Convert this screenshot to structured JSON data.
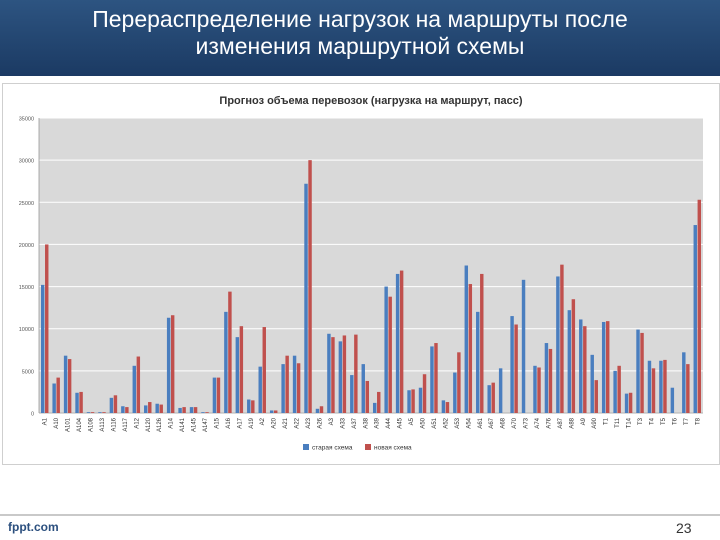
{
  "slide": {
    "title_line1": "Перераспределение нагрузок на маршруты после",
    "title_line2": "изменения маршрутной схемы",
    "footer_logo": "fppt.com",
    "page_number": "23"
  },
  "colors": {
    "header": "#24486f",
    "old_series": "#4a7ebf",
    "new_series": "#c0504d",
    "plot_bg": "#d9d9d9"
  },
  "chart_data": {
    "type": "bar",
    "title": "Прогноз объема перевозок (нагрузка на маршрут, пасс)",
    "xlabel": "",
    "ylabel": "",
    "ylim": [
      0,
      35000
    ],
    "yticks": [
      0,
      5000,
      10000,
      15000,
      20000,
      25000,
      30000,
      35000
    ],
    "grid": true,
    "legend_position": "bottom",
    "categories": [
      "A1",
      "A10",
      "A101",
      "A104",
      "A108",
      "A113",
      "A116",
      "A117",
      "A12",
      "A120",
      "A126",
      "A14",
      "A141",
      "A145",
      "A147",
      "A15",
      "A16",
      "A17",
      "A19",
      "A2",
      "A20",
      "A21",
      "A22",
      "A23",
      "A26",
      "A3",
      "A33",
      "A37",
      "A38",
      "A39",
      "A44",
      "A45",
      "A5",
      "A50",
      "A51",
      "A52",
      "A53",
      "A54",
      "A61",
      "A67",
      "A68",
      "A70",
      "A73",
      "A74",
      "A76",
      "A87",
      "A88",
      "A9",
      "A90",
      "T1",
      "T11",
      "T14",
      "T3",
      "T4",
      "T5",
      "T6",
      "T7",
      "T8"
    ],
    "series": [
      {
        "name": "старая схема",
        "values": [
          15200,
          3500,
          6800,
          2400,
          100,
          100,
          1800,
          800,
          5600,
          900,
          1100,
          11300,
          600,
          700,
          100,
          4200,
          12000,
          9000,
          1600,
          5500,
          300,
          5800,
          6800,
          27200,
          500,
          9400,
          8500,
          4500,
          5800,
          1200,
          15000,
          16500,
          2700,
          3000,
          7900,
          1500,
          4800,
          17500,
          12000,
          3300,
          5300,
          11500,
          15800,
          5600,
          8300,
          16200,
          12200,
          11100,
          6900,
          10800,
          5000,
          2300,
          9900,
          6200,
          6200,
          3000,
          7200,
          22300
        ]
      },
      {
        "name": "новая схема",
        "values": [
          20000,
          4200,
          6400,
          2500,
          100,
          100,
          2100,
          700,
          6700,
          1300,
          1000,
          11600,
          700,
          700,
          100,
          4200,
          14400,
          10300,
          1500,
          10200,
          300,
          6800,
          5900,
          30000,
          800,
          9000,
          9200,
          9300,
          3800,
          2500,
          13800,
          16900,
          2800,
          4600,
          8300,
          1300,
          7200,
          15300,
          16500,
          3600,
          0,
          10500,
          0,
          5400,
          7600,
          17600,
          13500,
          10300,
          3900,
          10900,
          5600,
          2400,
          9500,
          5300,
          6300,
          0,
          5800,
          25300
        ]
      }
    ]
  }
}
